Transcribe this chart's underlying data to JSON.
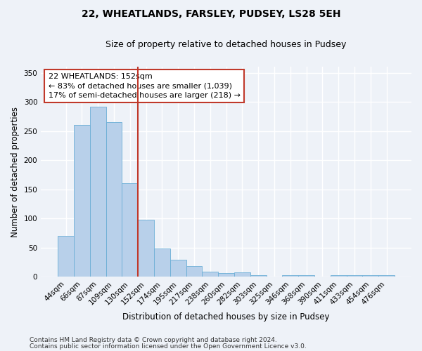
{
  "title_line1": "22, WHEATLANDS, FARSLEY, PUDSEY, LS28 5EH",
  "title_line2": "Size of property relative to detached houses in Pudsey",
  "xlabel": "Distribution of detached houses by size in Pudsey",
  "ylabel": "Number of detached properties",
  "categories": [
    "44sqm",
    "66sqm",
    "87sqm",
    "109sqm",
    "130sqm",
    "152sqm",
    "174sqm",
    "195sqm",
    "217sqm",
    "238sqm",
    "260sqm",
    "282sqm",
    "303sqm",
    "325sqm",
    "346sqm",
    "368sqm",
    "390sqm",
    "411sqm",
    "433sqm",
    "454sqm",
    "476sqm"
  ],
  "values": [
    70,
    260,
    292,
    265,
    160,
    98,
    49,
    29,
    18,
    9,
    6,
    8,
    3,
    0,
    3,
    3,
    0,
    3,
    3,
    3,
    3
  ],
  "bar_color": "#b8d0ea",
  "bar_edge_color": "#6baed6",
  "reference_line_x": 4.5,
  "reference_line_color": "#c0392b",
  "annotation_text": "22 WHEATLANDS: 152sqm\n← 83% of detached houses are smaller (1,039)\n17% of semi-detached houses are larger (218) →",
  "annotation_box_color": "#ffffff",
  "annotation_box_edge_color": "#c0392b",
  "ylim": [
    0,
    360
  ],
  "yticks": [
    0,
    50,
    100,
    150,
    200,
    250,
    300,
    350
  ],
  "footer_line1": "Contains HM Land Registry data © Crown copyright and database right 2024.",
  "footer_line2": "Contains public sector information licensed under the Open Government Licence v3.0.",
  "background_color": "#eef2f8",
  "plot_background_color": "#eef2f8",
  "grid_color": "#ffffff",
  "title_fontsize": 10,
  "subtitle_fontsize": 9,
  "axis_label_fontsize": 8.5,
  "tick_fontsize": 7.5,
  "annotation_fontsize": 8,
  "footer_fontsize": 6.5
}
